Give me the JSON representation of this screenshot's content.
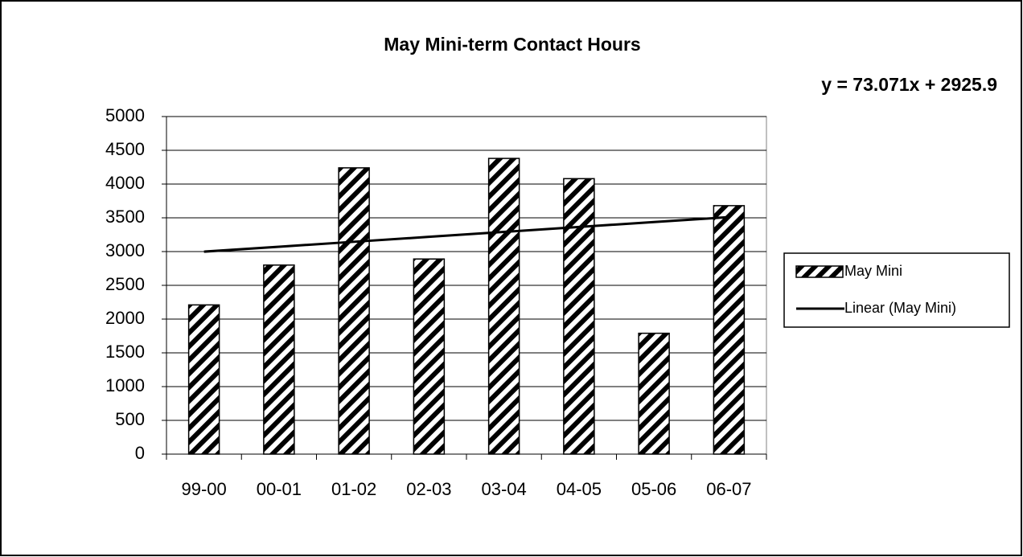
{
  "chart_data": {
    "type": "bar",
    "title": "May Mini-term Contact Hours",
    "annotation": "y = 73.071x + 2925.9",
    "categories": [
      "99-00",
      "00-01",
      "01-02",
      "02-03",
      "03-04",
      "04-05",
      "05-06",
      "06-07"
    ],
    "series": [
      {
        "name": "May Mini",
        "color": "#000000",
        "pattern": "diagonal-hatch",
        "values": [
          2210,
          2800,
          4240,
          2890,
          4380,
          4080,
          1790,
          3680
        ]
      },
      {
        "name": "Linear (May Mini)",
        "color": "#000000",
        "type": "line",
        "values": [
          2998.971,
          3072.042,
          3145.113,
          3218.184,
          3291.255,
          3364.326,
          3437.397,
          3510.468
        ]
      }
    ],
    "ylim": [
      0,
      5000
    ],
    "yticks": [
      0,
      500,
      1000,
      1500,
      2000,
      2500,
      3000,
      3500,
      4000,
      4500,
      5000
    ],
    "grid": true,
    "legend": "right"
  }
}
